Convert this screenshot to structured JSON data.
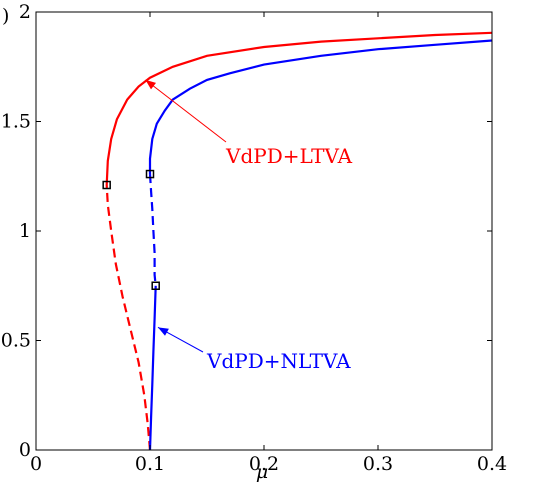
{
  "chart_data": {
    "type": "line",
    "title": "",
    "xlabel": "μ",
    "ylabel": "",
    "ylabel_fragment": ")",
    "xlim": [
      0,
      0.4
    ],
    "ylim": [
      0,
      2
    ],
    "xticks": [
      0,
      0.1,
      0.2,
      0.3,
      0.4
    ],
    "yticks": [
      0,
      0.5,
      1,
      1.5,
      2
    ],
    "xtick_labels": [
      "0",
      "0.1",
      "0.2",
      "0.3",
      "0.4"
    ],
    "ytick_labels": [
      "0",
      "0.5",
      "1",
      "1.5",
      "2"
    ],
    "grid": false,
    "legend": "none",
    "series": [
      {
        "color": "#ff0000",
        "stable": [
          [
            0.062,
            1.21
          ],
          [
            0.063,
            1.32
          ],
          [
            0.066,
            1.42
          ],
          [
            0.071,
            1.51
          ],
          [
            0.08,
            1.6
          ],
          [
            0.09,
            1.66
          ],
          [
            0.1,
            1.7
          ],
          [
            0.12,
            1.75
          ],
          [
            0.15,
            1.8
          ],
          [
            0.2,
            1.84
          ],
          [
            0.25,
            1.865
          ],
          [
            0.3,
            1.88
          ],
          [
            0.35,
            1.895
          ],
          [
            0.4,
            1.905
          ]
        ],
        "unstable": [
          [
            0.1,
            0
          ],
          [
            0.098,
            0.12
          ],
          [
            0.095,
            0.25
          ],
          [
            0.09,
            0.4
          ],
          [
            0.083,
            0.55
          ],
          [
            0.076,
            0.7
          ],
          [
            0.07,
            0.85
          ],
          [
            0.066,
            1.0
          ],
          [
            0.063,
            1.12
          ],
          [
            0.062,
            1.21
          ]
        ],
        "bifurcation_points": [
          [
            0.062,
            1.21
          ]
        ]
      },
      {
        "color": "#0000ff",
        "stable_upper": [
          [
            0.1,
            1.26
          ],
          [
            0.1,
            1.33
          ],
          [
            0.102,
            1.42
          ],
          [
            0.106,
            1.49
          ],
          [
            0.113,
            1.55
          ],
          [
            0.12,
            1.6
          ],
          [
            0.135,
            1.65
          ],
          [
            0.15,
            1.69
          ],
          [
            0.17,
            1.72
          ],
          [
            0.2,
            1.76
          ],
          [
            0.25,
            1.8
          ],
          [
            0.3,
            1.83
          ],
          [
            0.35,
            1.85
          ],
          [
            0.4,
            1.87
          ]
        ],
        "unstable": [
          [
            0.1,
            1.26
          ],
          [
            0.101,
            1.18
          ],
          [
            0.102,
            1.1
          ],
          [
            0.103,
            1.0
          ],
          [
            0.104,
            0.9
          ],
          [
            0.104,
            0.8
          ],
          [
            0.105,
            0.75
          ]
        ],
        "stable_lower": [
          [
            0.105,
            0.75
          ],
          [
            0.104,
            0.6
          ],
          [
            0.103,
            0.45
          ],
          [
            0.102,
            0.3
          ],
          [
            0.101,
            0.15
          ],
          [
            0.1,
            0
          ]
        ],
        "bifurcation_points": [
          [
            0.1,
            1.26
          ],
          [
            0.105,
            0.75
          ]
        ]
      }
    ],
    "annotations": [
      {
        "text": "VdPD+LTVA",
        "color": "#ff0000",
        "points_to": [
          0.096,
          1.69
        ]
      },
      {
        "text": "VdPD+NLTVA",
        "color": "#0000ff",
        "points_to": [
          0.107,
          0.56
        ]
      }
    ]
  }
}
